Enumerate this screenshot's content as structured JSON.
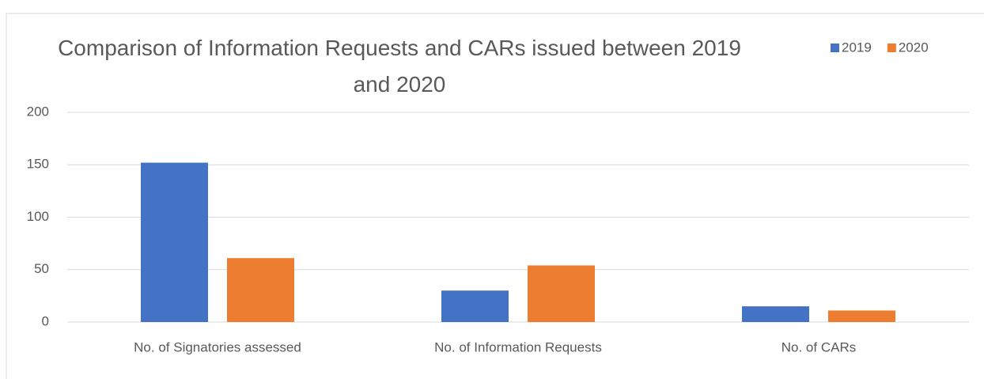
{
  "chart_data": {
    "type": "bar",
    "title": "Comparison of Information Requests and CARs issued between 2019 and 2020",
    "categories": [
      "No. of Signatories assessed",
      "No. of Information Requests",
      "No. of CARs"
    ],
    "series": [
      {
        "name": "2019",
        "color": "#4472c4",
        "values": [
          152,
          30,
          15
        ]
      },
      {
        "name": "2020",
        "color": "#ed7d31",
        "values": [
          61,
          54,
          11
        ]
      }
    ],
    "ylim": [
      0,
      200
    ],
    "yticks": [
      0,
      50,
      100,
      150,
      200
    ],
    "grid": true,
    "legend": "top-right"
  }
}
